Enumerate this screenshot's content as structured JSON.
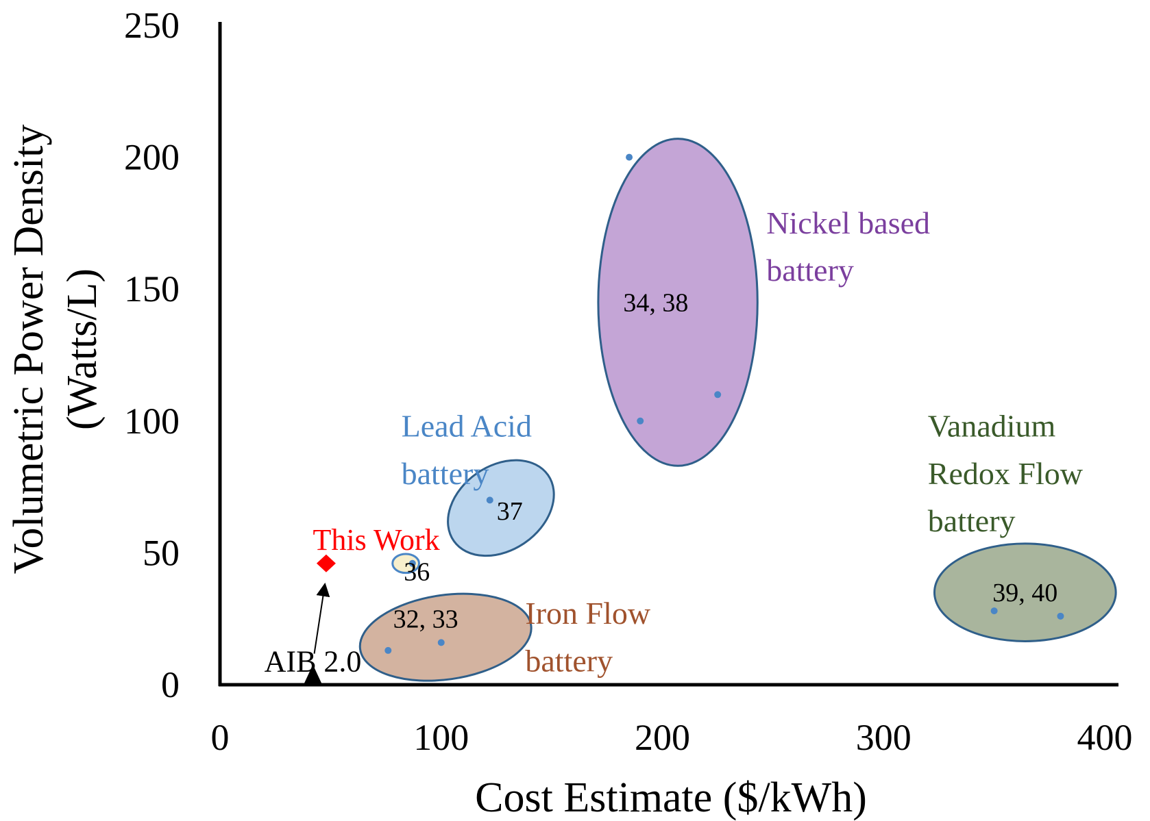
{
  "chart_data": {
    "type": "scatter",
    "xlabel": "Cost Estimate ($/kWh)",
    "ylabel": [
      "Volumetric Power Density",
      "(Watts/L)"
    ],
    "xlim": [
      0,
      400
    ],
    "ylim": [
      0,
      250
    ],
    "x_ticks": [
      "0",
      "100",
      "200",
      "300",
      "400"
    ],
    "y_ticks": [
      "0",
      "50",
      "100",
      "150",
      "200",
      "250"
    ],
    "grid": false,
    "groups": [
      {
        "name_lines": [
          "Nickel based",
          "battery"
        ],
        "refs": "34, 38",
        "color": "#7b3f9e",
        "fill": "#c4a5d6",
        "stroke": "#2f5f8a",
        "ellipse": {
          "cx": 207,
          "cy": 145,
          "rx": 36,
          "ry": 62,
          "rot": 0
        },
        "ref_pos": [
          197,
          145
        ],
        "label_pos": [
          [
            247,
            175
          ],
          [
            247,
            157
          ]
        ],
        "points": [
          [
            185,
            200
          ],
          [
            225,
            110
          ],
          [
            190,
            100
          ]
        ]
      },
      {
        "name_lines": [
          "Lead Acid",
          "battery"
        ],
        "refs": "37",
        "color": "#4a86c6",
        "fill": "#bcd6ee",
        "stroke": "#2f5f8a",
        "ellipse": {
          "cx": 127,
          "cy": 67,
          "rx": 26,
          "ry": 16,
          "rot": -35
        },
        "ref_pos": [
          131,
          66
        ],
        "label_pos": [
          [
            82,
            98
          ],
          [
            82,
            80
          ]
        ],
        "points": [
          [
            122,
            70
          ]
        ]
      },
      {
        "name_lines": [
          ""
        ],
        "refs": "36",
        "color": "#000000",
        "fill": "#f7efcc",
        "stroke": "#4a86c6",
        "ellipse": {
          "cx": 84,
          "cy": 46,
          "rx": 6,
          "ry": 3.6,
          "rot": 0
        },
        "ref_pos": [
          89,
          43
        ],
        "label_pos": [],
        "points": [
          [
            87,
            46
          ]
        ]
      },
      {
        "name_lines": [
          "Iron Flow",
          "battery"
        ],
        "refs": "32, 33",
        "color": "#a0522d",
        "fill": "#d3b3a0",
        "stroke": "#2f5f8a",
        "ellipse": {
          "cx": 102,
          "cy": 18,
          "rx": 39,
          "ry": 16,
          "rot": -8
        },
        "ref_pos": [
          93,
          25
        ],
        "label_pos": [
          [
            138,
            27
          ],
          [
            138,
            9
          ]
        ],
        "points": [
          [
            76,
            13
          ],
          [
            100,
            16
          ]
        ]
      },
      {
        "name_lines": [
          "Vanadium",
          "Redox Flow",
          "battery"
        ],
        "refs": "39, 40",
        "color": "#3a5a2a",
        "fill": "#a9b59d",
        "stroke": "#2f5f8a",
        "ellipse": {
          "cx": 364,
          "cy": 35,
          "rx": 41,
          "ry": 18.5,
          "rot": 0
        },
        "ref_pos": [
          364,
          35
        ],
        "label_pos": [
          [
            320,
            98
          ],
          [
            320,
            80
          ],
          [
            320,
            62
          ]
        ],
        "points": [
          [
            350,
            28
          ],
          [
            380,
            26
          ]
        ]
      }
    ],
    "annotations": [
      {
        "label": "This Work",
        "color": "#ff0000",
        "marker": "diamond",
        "x": 48,
        "y": 46,
        "label_pos": [
          42,
          55
        ]
      },
      {
        "label": "AIB 2.0",
        "color": "#000000",
        "marker": "triangle",
        "x": 42,
        "y": 4,
        "label_pos": [
          42,
          9
        ]
      }
    ]
  }
}
